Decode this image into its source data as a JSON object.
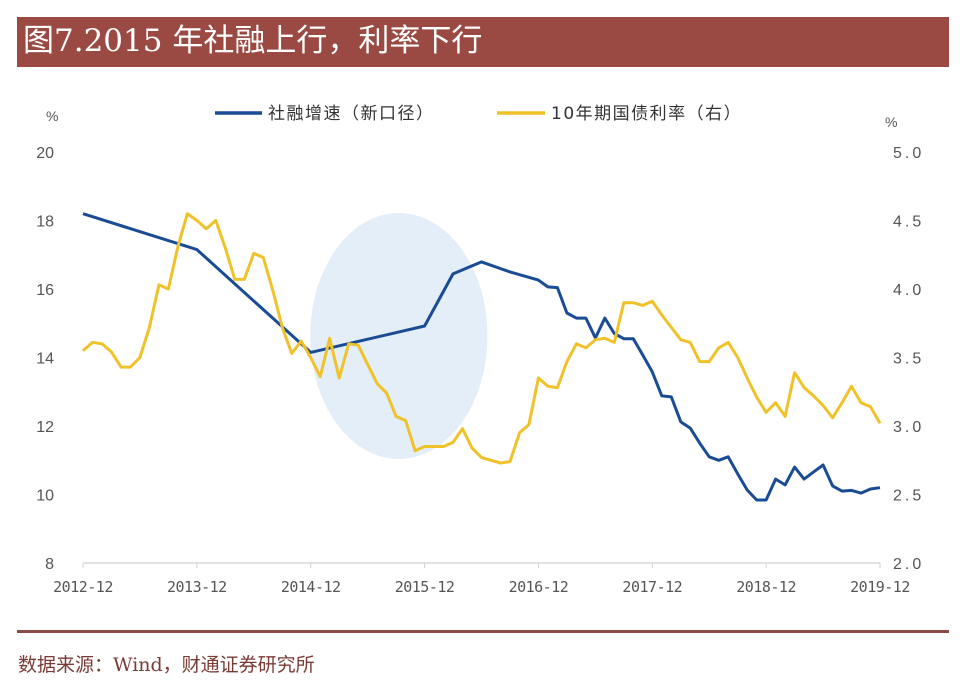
{
  "header": {
    "title": "图7.2015 年社融上行，利率下行"
  },
  "footer": {
    "source": "数据来源：Wind，财通证券研究所"
  },
  "chart_data": {
    "type": "line",
    "title": "图7.2015 年社融上行，利率下行",
    "left_unit": "%",
    "right_unit": "%",
    "legend_position": "top",
    "grid": false,
    "x_ticks": [
      "2012-12",
      "2013-12",
      "2014-12",
      "2015-12",
      "2016-12",
      "2017-12",
      "2018-12",
      "2019-12"
    ],
    "x_range": [
      "2012-12",
      "2019-12"
    ],
    "y_left": {
      "range": [
        8,
        20
      ],
      "ticks": [
        "20",
        "18",
        "16",
        "14",
        "12",
        "10",
        "8"
      ]
    },
    "y_right": {
      "range": [
        2.0,
        5.0
      ],
      "ticks": [
        "5.0",
        "4.5",
        "4.0",
        "3.5",
        "3.0",
        "2.5",
        "2.0"
      ]
    },
    "highlight": {
      "shape": "ellipse",
      "color": "#e3eef8",
      "period": [
        "2015-01",
        "2016-06"
      ]
    },
    "series": [
      {
        "name": "社融增速（新口径）",
        "axis": "left",
        "color": "#1a4c95",
        "points": [
          [
            "2012-12",
            18.2
          ],
          [
            "2013-12",
            17.15
          ],
          [
            "2014-12",
            14.15
          ],
          [
            "2015-12",
            14.92
          ],
          [
            "2016-03",
            16.44
          ],
          [
            "2016-06",
            16.79
          ],
          [
            "2016-09",
            16.5
          ],
          [
            "2016-12",
            16.26
          ],
          [
            "2017-01",
            16.06
          ],
          [
            "2017-02",
            16.04
          ],
          [
            "2017-03",
            15.3
          ],
          [
            "2017-04",
            15.15
          ],
          [
            "2017-05",
            15.15
          ],
          [
            "2017-06",
            14.57
          ],
          [
            "2017-07",
            15.15
          ],
          [
            "2017-08",
            14.7
          ],
          [
            "2017-09",
            14.55
          ],
          [
            "2017-10",
            14.55
          ],
          [
            "2017-11",
            14.07
          ],
          [
            "2017-12",
            13.58
          ],
          [
            "2018-01",
            12.88
          ],
          [
            "2018-02",
            12.85
          ],
          [
            "2018-03",
            12.12
          ],
          [
            "2018-04",
            11.94
          ],
          [
            "2018-05",
            11.5
          ],
          [
            "2018-06",
            11.1
          ],
          [
            "2018-07",
            11.0
          ],
          [
            "2018-08",
            11.1
          ],
          [
            "2018-09",
            10.6
          ],
          [
            "2018-10",
            10.13
          ],
          [
            "2018-11",
            9.84
          ],
          [
            "2018-12",
            9.84
          ],
          [
            "2019-01",
            10.45
          ],
          [
            "2019-02",
            10.28
          ],
          [
            "2019-03",
            10.8
          ],
          [
            "2019-04",
            10.45
          ],
          [
            "2019-05",
            10.66
          ],
          [
            "2019-06",
            10.86
          ],
          [
            "2019-07",
            10.25
          ],
          [
            "2019-08",
            10.1
          ],
          [
            "2019-09",
            10.12
          ],
          [
            "2019-10",
            10.04
          ],
          [
            "2019-11",
            10.16
          ],
          [
            "2019-12",
            10.2
          ]
        ]
      },
      {
        "name": "10年期国债利率（右）",
        "axis": "right",
        "color": "#f0c22a",
        "start": "2012-12",
        "frequency": "monthly",
        "values": [
          3.55,
          3.61,
          3.6,
          3.54,
          3.43,
          3.43,
          3.5,
          3.72,
          4.03,
          4.0,
          4.31,
          4.55,
          4.5,
          4.44,
          4.5,
          4.3,
          4.07,
          4.07,
          4.26,
          4.23,
          3.99,
          3.72,
          3.53,
          3.62,
          3.5,
          3.36,
          3.64,
          3.35,
          3.6,
          3.59,
          3.45,
          3.31,
          3.24,
          3.07,
          3.04,
          2.82,
          2.85,
          2.85,
          2.85,
          2.88,
          2.98,
          2.84,
          2.77,
          2.75,
          2.73,
          2.74,
          2.95,
          3.01,
          3.35,
          3.29,
          3.28,
          3.47,
          3.6,
          3.57,
          3.63,
          3.64,
          3.61,
          3.9,
          3.9,
          3.88,
          3.91,
          3.81,
          3.72,
          3.63,
          3.61,
          3.47,
          3.47,
          3.57,
          3.61,
          3.5,
          3.35,
          3.21,
          3.1,
          3.17,
          3.07,
          3.39,
          3.28,
          3.22,
          3.15,
          3.06,
          3.17,
          3.29,
          3.17,
          3.14,
          3.02
        ]
      }
    ]
  }
}
